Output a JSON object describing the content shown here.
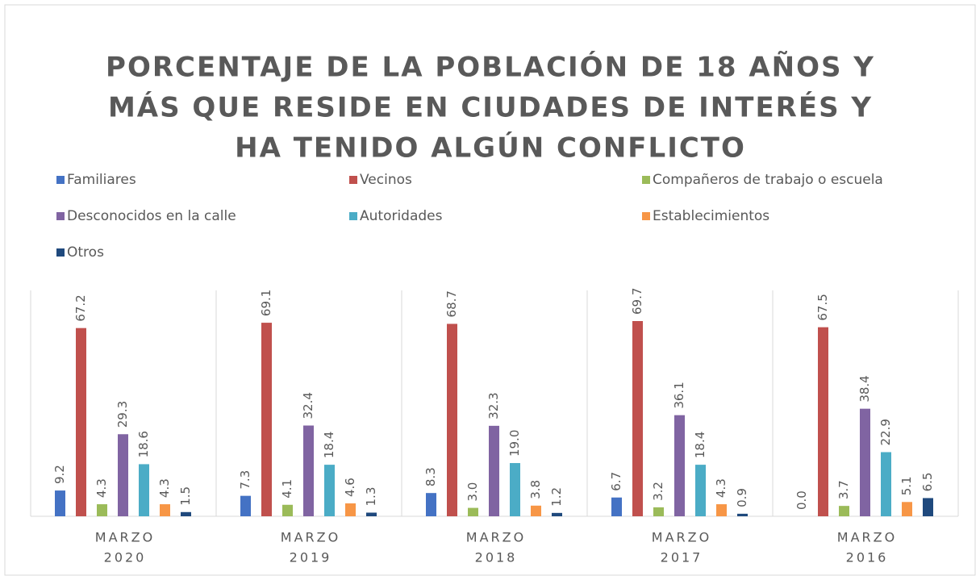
{
  "chart_data": {
    "type": "bar",
    "title": [
      "PORCENTAJE DE LA POBLACIÓN DE 18 AÑOS Y",
      "MÁS QUE RESIDE EN CIUDADES DE INTERÉS Y",
      "HA TENIDO ALGÚN CONFLICTO"
    ],
    "categories": [
      [
        "MARZO",
        "2020"
      ],
      [
        "MARZO",
        "2019"
      ],
      [
        "MARZO",
        "2018"
      ],
      [
        "MARZO",
        "2017"
      ],
      [
        "MARZO",
        "2016"
      ]
    ],
    "series": [
      {
        "name": "Familiares",
        "color": "#4472c4",
        "values": [
          9.2,
          7.3,
          8.3,
          6.7,
          0.0
        ],
        "value_labels": [
          "9.2",
          "7.3",
          "8.3",
          "6.7",
          "0.0"
        ]
      },
      {
        "name": "Vecinos",
        "color": "#c0504d",
        "values": [
          67.2,
          69.1,
          68.7,
          69.7,
          67.5
        ],
        "value_labels": [
          "67.2",
          "69.1",
          "68.7",
          "69.7",
          "67.5"
        ]
      },
      {
        "name": "Compañeros de trabajo o escuela",
        "color": "#9bbb59",
        "values": [
          4.3,
          4.1,
          3.0,
          3.2,
          3.7
        ],
        "value_labels": [
          "4.3",
          "4.1",
          "3.0",
          "3.2",
          "3.7"
        ]
      },
      {
        "name": "Desconocidos en la calle",
        "color": "#8064a2",
        "values": [
          29.3,
          32.4,
          32.3,
          36.1,
          38.4
        ],
        "value_labels": [
          "29.3",
          "32.4",
          "32.3",
          "36.1",
          "38.4"
        ]
      },
      {
        "name": "Autoridades",
        "color": "#4bacc6",
        "values": [
          18.6,
          18.4,
          19.0,
          18.4,
          22.9
        ],
        "value_labels": [
          "18.6",
          "18.4",
          "19.0",
          "18.4",
          "22.9"
        ]
      },
      {
        "name": "Establecimientos",
        "color": "#f79646",
        "values": [
          4.3,
          4.6,
          3.8,
          4.3,
          5.1
        ],
        "value_labels": [
          "4.3",
          "4.6",
          "3.8",
          "4.3",
          "5.1"
        ]
      },
      {
        "name": "Otros",
        "color": "#1f497d",
        "values": [
          1.5,
          1.3,
          1.2,
          0.9,
          6.5
        ],
        "value_labels": [
          "1.5",
          "1.3",
          "1.2",
          "0.9",
          "6.5"
        ]
      }
    ],
    "legend": "top"
  }
}
